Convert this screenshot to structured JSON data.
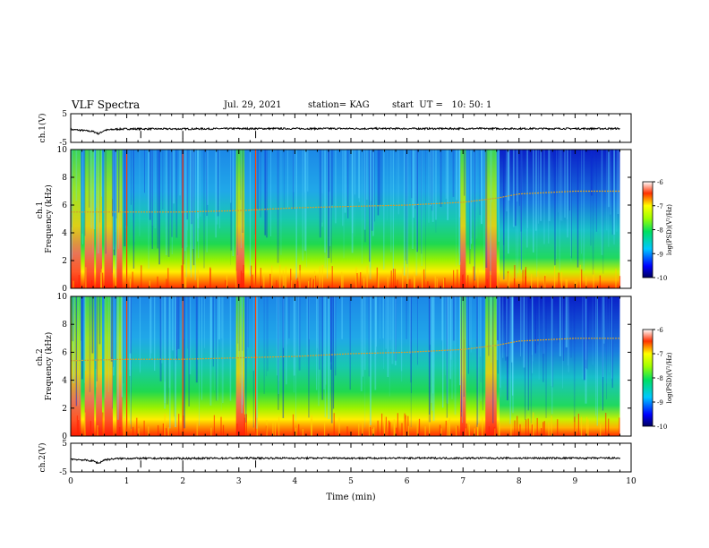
{
  "header": {
    "title": "VLF Spectra",
    "date": "Jul. 29, 2021",
    "station": "station= KAG",
    "start": "start  UT =   10: 50: 1"
  },
  "chart_data": [
    {
      "type": "line",
      "name_label": "ch.1(V)",
      "ylabel": "ch.1(V)",
      "ylim": [
        -5,
        5
      ],
      "yticks": [
        "5",
        "-5"
      ],
      "x": [
        0,
        0.2,
        0.4,
        0.5,
        0.6,
        0.8,
        1.0,
        2.0,
        3.0,
        4.0,
        5.0,
        6.0,
        7.0,
        8.0,
        9.0,
        9.8
      ],
      "values": [
        -0.5,
        -0.8,
        -1.2,
        -2.0,
        -0.8,
        -0.4,
        -0.3,
        -0.3,
        -0.2,
        -0.2,
        -0.2,
        -0.2,
        -0.2,
        -0.2,
        -0.2,
        -0.2
      ]
    },
    {
      "type": "heatmap",
      "channel_label": "ch.1",
      "ylabel": "Frequency (kHz)",
      "ylim": [
        0,
        10
      ],
      "yticks": [
        "0",
        "2",
        "4",
        "6",
        "8",
        "10"
      ],
      "xlim": [
        0,
        10
      ],
      "colorbar": {
        "label": "log(PSD)(V²/Hz)",
        "ticks": [
          "-6",
          "-7",
          "-8",
          "-9",
          "-10"
        ],
        "range": [
          -10,
          -6
        ]
      },
      "tone_line_khz": {
        "x": [
          0,
          1,
          2,
          3,
          4,
          5,
          6,
          7,
          7.6,
          8,
          9,
          9.8
        ],
        "y": [
          5.5,
          5.5,
          5.5,
          5.6,
          5.8,
          5.9,
          6.0,
          6.2,
          6.5,
          6.8,
          7.0,
          7.0
        ]
      }
    },
    {
      "type": "heatmap",
      "channel_label": "ch.2",
      "ylabel": "Frequency (kHz)",
      "ylim": [
        0,
        10
      ],
      "yticks": [
        "0",
        "2",
        "4",
        "6",
        "8",
        "10"
      ],
      "xlim": [
        0,
        10
      ],
      "colorbar": {
        "label": "log(PSD)(V²/Hz)",
        "ticks": [
          "-6",
          "-7",
          "-8",
          "-9",
          "-10"
        ],
        "range": [
          -10,
          -6
        ]
      },
      "tone_line_khz": {
        "x": [
          0,
          1,
          2,
          3,
          4,
          5,
          6,
          7,
          7.6,
          8,
          9,
          9.8
        ],
        "y": [
          5.4,
          5.5,
          5.5,
          5.6,
          5.7,
          5.9,
          6.0,
          6.2,
          6.5,
          6.8,
          7.0,
          7.0
        ]
      }
    },
    {
      "type": "line",
      "name_label": "ch.2(V)",
      "ylabel": "ch.2(V)",
      "ylim": [
        -5,
        5
      ],
      "yticks": [
        "5",
        "-5"
      ],
      "x": [
        0,
        0.2,
        0.4,
        0.5,
        0.6,
        0.8,
        1.0,
        2.0,
        3.0,
        4.0,
        5.0,
        6.0,
        7.0,
        8.0,
        9.0,
        9.8
      ],
      "values": [
        -0.5,
        -0.8,
        -1.2,
        -2.0,
        -0.8,
        -0.4,
        -0.3,
        -0.3,
        -0.2,
        -0.2,
        -0.2,
        -0.2,
        -0.2,
        -0.2,
        -0.2,
        -0.2
      ]
    }
  ],
  "xaxis": {
    "label": "Time (min)",
    "xlim": [
      0,
      10
    ],
    "ticks": [
      "0",
      "1",
      "2",
      "3",
      "4",
      "5",
      "6",
      "7",
      "8",
      "9",
      "10"
    ]
  }
}
